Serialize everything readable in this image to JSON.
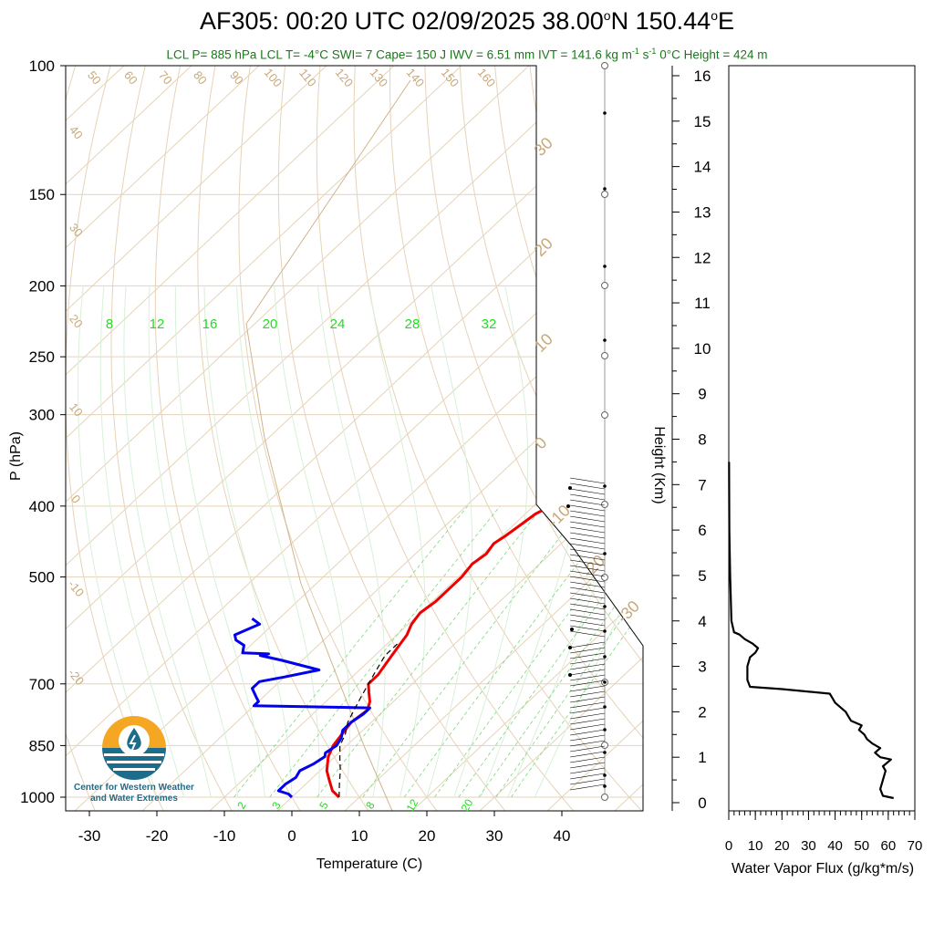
{
  "header": {
    "title_main": "AF305: 00:20 UTC 02/09/2025  38.00",
    "title_lat_unit": "N 150.44",
    "title_lon_unit": "E",
    "title_degree": "o",
    "subtitle_a": "LCL P= 885 hPa  LCL T= -4°C  SWI= 7  Cape= 150 J  IWV = 6.51 mm  IVT = 141.6 kg m",
    "subtitle_sup1": "-1",
    "subtitle_b": " s",
    "subtitle_sup2": "-1",
    "subtitle_c": "  0°C Height = 424 m"
  },
  "logo": {
    "line1": "Center for Western Weather",
    "line2": "and Water Extremes",
    "colors": {
      "sun": "#f5a623",
      "water": "#1c6d8c"
    }
  },
  "chart_data": [
    {
      "type": "line",
      "name": "skew-t",
      "xlabel": "Temperature (C)",
      "ylabel": "P (hPa)",
      "xlim": [
        -34,
        50
      ],
      "ylim": [
        1000,
        100
      ],
      "yscale": "log",
      "xticks": [
        -30,
        -20,
        -10,
        0,
        10,
        20,
        30,
        40
      ],
      "yticks": [
        100,
        150,
        200,
        250,
        300,
        400,
        500,
        700,
        850,
        1000
      ],
      "mixing_ratio_labels": [
        "8",
        "12",
        "16",
        "20",
        "24",
        "28",
        "32"
      ],
      "mixing_ratio_bottom_labels": [
        "2",
        "3",
        "5",
        "8",
        "12",
        "20"
      ],
      "dry_adiabat_labels": [
        "50",
        "60",
        "70",
        "80",
        "90",
        "100",
        "110",
        "120",
        "130",
        "140",
        "150",
        "160",
        "40",
        "30",
        "20",
        "10",
        "0",
        "-10",
        "-20"
      ],
      "moist_adiabat_labels": [
        "30",
        "20",
        "10",
        "0",
        "-10",
        "-20",
        "-30"
      ],
      "series": [
        {
          "name": "temperature",
          "color": "#ee0000",
          "points": [
            [
              7,
              1000
            ],
            [
              5,
              980
            ],
            [
              3,
              950
            ],
            [
              1,
              920
            ],
            [
              -1,
              880
            ],
            [
              -2,
              850
            ],
            [
              -2.5,
              820
            ],
            [
              -3,
              790
            ],
            [
              -2.5,
              760
            ],
            [
              -3.5,
              740
            ],
            [
              -5,
              720
            ],
            [
              -6.5,
              700
            ],
            [
              -6.5,
              680
            ],
            [
              -7,
              660
            ],
            [
              -7.5,
              640
            ],
            [
              -8,
              620
            ],
            [
              -8.5,
              600
            ],
            [
              -9.5,
              580
            ],
            [
              -10,
              560
            ],
            [
              -9.5,
              540
            ],
            [
              -9.5,
              520
            ],
            [
              -9.5,
              500
            ],
            [
              -10,
              480
            ],
            [
              -9.5,
              465
            ],
            [
              -10,
              450
            ],
            [
              -9.5,
              440
            ],
            [
              -9,
              425
            ],
            [
              -8.5,
              410
            ],
            [
              -7.5,
              400
            ],
            [
              -6.5,
              390
            ]
          ]
        },
        {
          "name": "dewpoint",
          "color": "#0000ee",
          "points": [
            [
              0,
              1000
            ],
            [
              -1,
              990
            ],
            [
              -3,
              980
            ],
            [
              -3,
              960
            ],
            [
              -2.5,
              940
            ],
            [
              -3,
              920
            ],
            [
              -2,
              900
            ],
            [
              -1.5,
              880
            ],
            [
              -2,
              870
            ],
            [
              -1.5,
              850
            ],
            [
              -2,
              830
            ],
            [
              -3,
              810
            ],
            [
              -3,
              790
            ],
            [
              -2.5,
              770
            ],
            [
              -2.5,
              755
            ],
            [
              -20,
              750
            ],
            [
              -20,
              740
            ],
            [
              -21,
              730
            ],
            [
              -23,
              710
            ],
            [
              -23,
              695
            ],
            [
              -20,
              685
            ],
            [
              -16,
              670
            ],
            [
              -23,
              650
            ],
            [
              -27,
              640
            ],
            [
              -26,
              637
            ],
            [
              -30,
              635
            ],
            [
              -31,
              620
            ],
            [
              -33,
              610
            ],
            [
              -34,
              600
            ],
            [
              -32,
              580
            ],
            [
              -34,
              570
            ]
          ]
        },
        {
          "name": "parcel",
          "color": "#000000",
          "dash": true,
          "points": [
            [
              7,
              1000
            ],
            [
              5,
              960
            ],
            [
              3,
              920
            ],
            [
              1,
              885
            ],
            [
              -1,
              850
            ],
            [
              -2,
              820
            ],
            [
              -3.5,
              790
            ],
            [
              -4.5,
              760
            ],
            [
              -5.5,
              730
            ],
            [
              -6.5,
              700
            ],
            [
              -7.5,
              670
            ],
            [
              -8.5,
              640
            ],
            [
              -8.5,
              615
            ]
          ]
        }
      ]
    },
    {
      "type": "line",
      "name": "water-vapor-flux",
      "xlabel": "Water Vapor Flux (g/kg*m/s)",
      "ylabel": "Height (Km)",
      "xlim": [
        0,
        70
      ],
      "ylim": [
        0,
        16.5
      ],
      "xticks": [
        0,
        10,
        20,
        30,
        40,
        50,
        60,
        70
      ],
      "yticks": [
        0,
        1,
        2,
        3,
        4,
        5,
        6,
        7,
        8,
        9,
        10,
        11,
        12,
        13,
        14,
        15,
        16
      ],
      "series": [
        {
          "name": "flux",
          "color": "#000000",
          "points": [
            [
              62,
              0.1
            ],
            [
              58,
              0.15
            ],
            [
              57,
              0.3
            ],
            [
              58,
              0.5
            ],
            [
              59,
              0.7
            ],
            [
              58,
              0.8
            ],
            [
              61,
              0.95
            ],
            [
              57,
              1.0
            ],
            [
              55,
              1.1
            ],
            [
              57,
              1.2
            ],
            [
              54,
              1.3
            ],
            [
              52,
              1.4
            ],
            [
              51,
              1.5
            ],
            [
              49,
              1.6
            ],
            [
              50,
              1.7
            ],
            [
              46,
              1.8
            ],
            [
              45,
              1.9
            ],
            [
              44,
              2.0
            ],
            [
              42,
              2.1
            ],
            [
              40,
              2.2
            ],
            [
              39,
              2.3
            ],
            [
              38,
              2.4
            ],
            [
              20,
              2.5
            ],
            [
              8,
              2.55
            ],
            [
              7,
              2.7
            ],
            [
              7,
              3.0
            ],
            [
              8,
              3.2
            ],
            [
              10,
              3.3
            ],
            [
              11,
              3.4
            ],
            [
              9,
              3.5
            ],
            [
              6,
              3.6
            ],
            [
              4,
              3.7
            ],
            [
              2,
              3.75
            ],
            [
              1,
              4.0
            ],
            [
              0.5,
              5.0
            ],
            [
              0.2,
              6.0
            ],
            [
              0.1,
              7.5
            ]
          ]
        }
      ]
    }
  ]
}
